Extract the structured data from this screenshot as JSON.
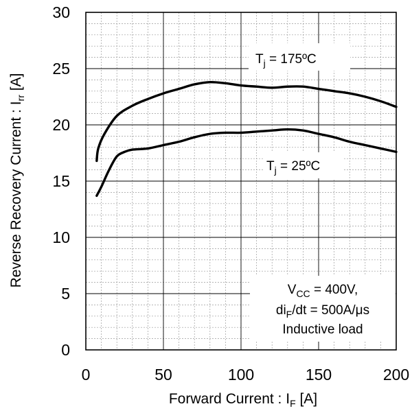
{
  "chart_data": {
    "type": "line",
    "xlabel": {
      "main": "Forward Current : I",
      "sub": "F",
      "unit": " [A]"
    },
    "ylabel": {
      "main": "Reverse Recovery Current : I",
      "sub": "rr",
      "unit": " [A]"
    },
    "xlim": [
      0,
      200
    ],
    "ylim": [
      0,
      30
    ],
    "x_major_ticks": [
      0,
      50,
      100,
      150,
      200
    ],
    "y_major_ticks": [
      0,
      5,
      10,
      15,
      20,
      25,
      30
    ],
    "x_tick_labels": [
      "0",
      "50",
      "100",
      "150",
      "200"
    ],
    "y_tick_labels": [
      "0",
      "5",
      "10",
      "15",
      "20",
      "25",
      "30"
    ],
    "x_minor_step": 10,
    "y_minor_step": 1,
    "grid": true,
    "line_color": "#000000",
    "series": [
      {
        "id": "tj175",
        "label": {
          "pre": "T",
          "sub": "j",
          "post": " = 175ºC"
        },
        "x": [
          7,
          8,
          12,
          20,
          30,
          40,
          50,
          60,
          70,
          80,
          90,
          100,
          110,
          120,
          130,
          140,
          150,
          160,
          170,
          180,
          190,
          200
        ],
        "y": [
          16.8,
          17.9,
          19.2,
          20.8,
          21.7,
          22.3,
          22.8,
          23.2,
          23.6,
          23.8,
          23.7,
          23.5,
          23.4,
          23.3,
          23.4,
          23.4,
          23.2,
          23.0,
          22.8,
          22.5,
          22.1,
          21.6
        ]
      },
      {
        "id": "tj25",
        "label": {
          "pre": "T",
          "sub": "j",
          "post": " = 25ºC"
        },
        "x": [
          7,
          10,
          15,
          20,
          25,
          30,
          40,
          50,
          60,
          70,
          80,
          90,
          100,
          110,
          120,
          130,
          140,
          150,
          160,
          170,
          180,
          190,
          200
        ],
        "y": [
          13.7,
          14.5,
          16.0,
          17.2,
          17.6,
          17.8,
          17.9,
          18.2,
          18.5,
          18.9,
          19.2,
          19.3,
          19.3,
          19.4,
          19.5,
          19.6,
          19.5,
          19.2,
          18.9,
          18.5,
          18.2,
          17.9,
          17.6
        ]
      }
    ],
    "conditions": {
      "vcc": {
        "pre": "V",
        "sub": "CC",
        "post": " = 400V,"
      },
      "didt": {
        "pre": "di",
        "sub": "F",
        "post": "/dt = 500A/μs"
      },
      "load": "Inductive load"
    }
  }
}
